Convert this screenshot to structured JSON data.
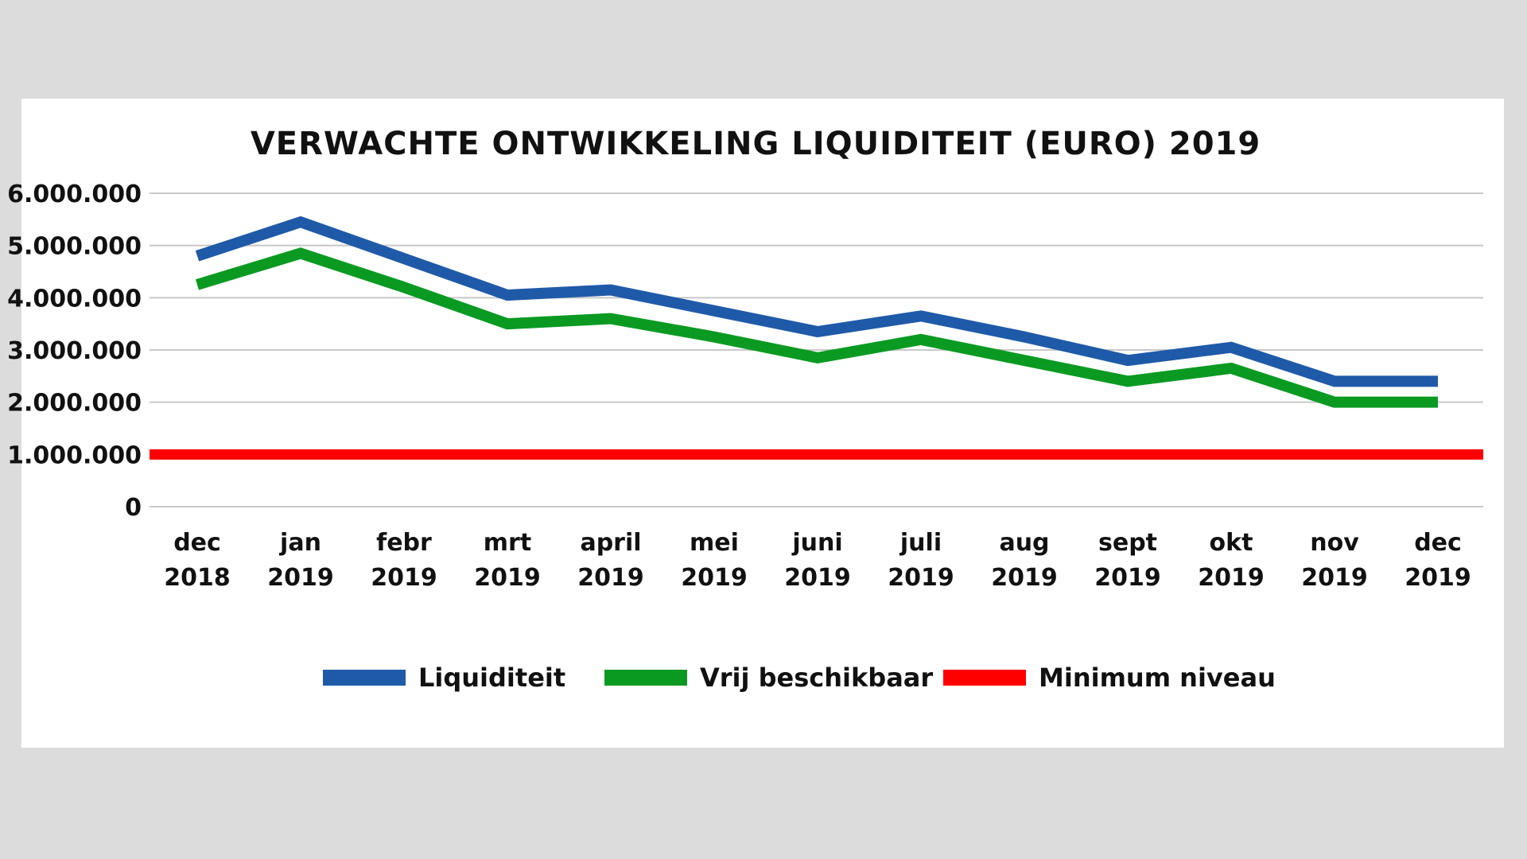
{
  "chart_data": {
    "type": "line",
    "title": "VERWACHTE ONTWIKKELING LIQUIDITEIT (EURO) 2019",
    "xlabel": "",
    "ylabel": "",
    "ylim": [
      0,
      6000000
    ],
    "yticks": [
      {
        "value": 0,
        "label": "0"
      },
      {
        "value": 1000000,
        "label": "1.000.000"
      },
      {
        "value": 2000000,
        "label": "2.000.000"
      },
      {
        "value": 3000000,
        "label": "3.000.000"
      },
      {
        "value": 4000000,
        "label": "4.000.000"
      },
      {
        "value": 5000000,
        "label": "5.000.000"
      },
      {
        "value": 6000000,
        "label": "6.000.000"
      }
    ],
    "categories": [
      {
        "month": "dec",
        "year": "2018"
      },
      {
        "month": "jan",
        "year": "2019"
      },
      {
        "month": "febr",
        "year": "2019"
      },
      {
        "month": "mrt",
        "year": "2019"
      },
      {
        "month": "april",
        "year": "2019"
      },
      {
        "month": "mei",
        "year": "2019"
      },
      {
        "month": "juni",
        "year": "2019"
      },
      {
        "month": "juli",
        "year": "2019"
      },
      {
        "month": "aug",
        "year": "2019"
      },
      {
        "month": "sept",
        "year": "2019"
      },
      {
        "month": "okt",
        "year": "2019"
      },
      {
        "month": "nov",
        "year": "2019"
      },
      {
        "month": "dec",
        "year": "2019"
      }
    ],
    "grid": true,
    "legend_position": "bottom",
    "series": [
      {
        "name": "Liquiditeit",
        "color": "#1f5aa8",
        "values": [
          4800000,
          5450000,
          4750000,
          4050000,
          4150000,
          3750000,
          3350000,
          3650000,
          3250000,
          2800000,
          3050000,
          2400000,
          2400000
        ]
      },
      {
        "name": "Vrij beschikbaar",
        "color": "#0a9a22",
        "values": [
          4250000,
          4850000,
          4200000,
          3500000,
          3600000,
          3250000,
          2850000,
          3200000,
          2800000,
          2400000,
          2650000,
          2000000,
          2000000
        ]
      },
      {
        "name": "Minimum niveau",
        "color": "#ff0000",
        "values": [
          1000000,
          1000000,
          1000000,
          1000000,
          1000000,
          1000000,
          1000000,
          1000000,
          1000000,
          1000000,
          1000000,
          1000000,
          1000000
        ]
      }
    ]
  }
}
